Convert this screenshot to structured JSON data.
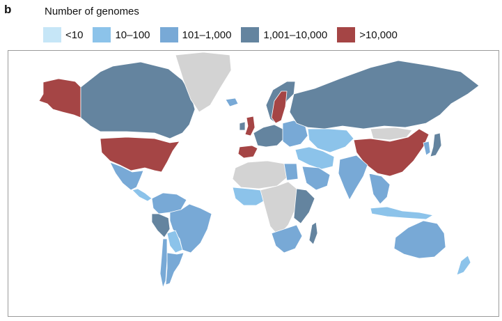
{
  "panel_label": "b",
  "legend": {
    "title": "Number of genomes",
    "items": [
      {
        "label": "<10",
        "color": "#c6e6f7"
      },
      {
        "label": "10–100",
        "color": "#8cc3ea"
      },
      {
        "label": "101–1,000",
        "color": "#78a9d6"
      },
      {
        "label": "1,001–10,000",
        "color": "#64849f"
      },
      {
        "label": ">10,000",
        "color": "#a54545"
      }
    ]
  },
  "colors": {
    "no_data": "#d3d3d3",
    "background": "#ffffff",
    "border": "#ffffff"
  },
  "regions": [
    {
      "name": "alaska",
      "category": ">10,000"
    },
    {
      "name": "canada",
      "category": "1,001–10,000"
    },
    {
      "name": "united-states",
      "category": ">10,000"
    },
    {
      "name": "mexico",
      "category": "101–1,000"
    },
    {
      "name": "central-america",
      "category": "10–100"
    },
    {
      "name": "greenland",
      "category": "none"
    },
    {
      "name": "iceland",
      "category": "101–1,000"
    },
    {
      "name": "colombia-venezuela",
      "category": "101–1,000"
    },
    {
      "name": "peru",
      "category": "1,001–10,000"
    },
    {
      "name": "brazil",
      "category": "101–1,000"
    },
    {
      "name": "bolivia-paraguay",
      "category": "10–100"
    },
    {
      "name": "chile",
      "category": "101–1,000"
    },
    {
      "name": "argentina",
      "category": "101–1,000"
    },
    {
      "name": "united-kingdom",
      "category": ">10,000"
    },
    {
      "name": "ireland",
      "category": "1,001–10,000"
    },
    {
      "name": "scandinavia",
      "category": "1,001–10,000"
    },
    {
      "name": "sweden",
      "category": ">10,000"
    },
    {
      "name": "spain",
      "category": ">10,000"
    },
    {
      "name": "western-europe",
      "category": "1,001–10,000"
    },
    {
      "name": "eastern-europe",
      "category": "101–1,000"
    },
    {
      "name": "russia",
      "category": "1,001–10,000"
    },
    {
      "name": "kazakhstan-central-asia",
      "category": "10–100"
    },
    {
      "name": "middle-east",
      "category": "10–100"
    },
    {
      "name": "saudi-arabia",
      "category": "101–1,000"
    },
    {
      "name": "north-africa",
      "category": "none"
    },
    {
      "name": "egypt",
      "category": "101–1,000"
    },
    {
      "name": "west-africa",
      "category": "10–100"
    },
    {
      "name": "central-africa",
      "category": "none"
    },
    {
      "name": "east-africa",
      "category": "1,001–10,000"
    },
    {
      "name": "southern-africa",
      "category": "101–1,000"
    },
    {
      "name": "madagascar",
      "category": "1,001–10,000"
    },
    {
      "name": "india",
      "category": "101–1,000"
    },
    {
      "name": "china",
      "category": ">10,000"
    },
    {
      "name": "mongolia",
      "category": "none"
    },
    {
      "name": "southeast-asia",
      "category": "101–1,000"
    },
    {
      "name": "japan",
      "category": "1,001–10,000"
    },
    {
      "name": "korea",
      "category": "101–1,000"
    },
    {
      "name": "indonesia",
      "category": "10–100"
    },
    {
      "name": "australia",
      "category": "101–1,000"
    },
    {
      "name": "new-zealand",
      "category": "10–100"
    }
  ]
}
